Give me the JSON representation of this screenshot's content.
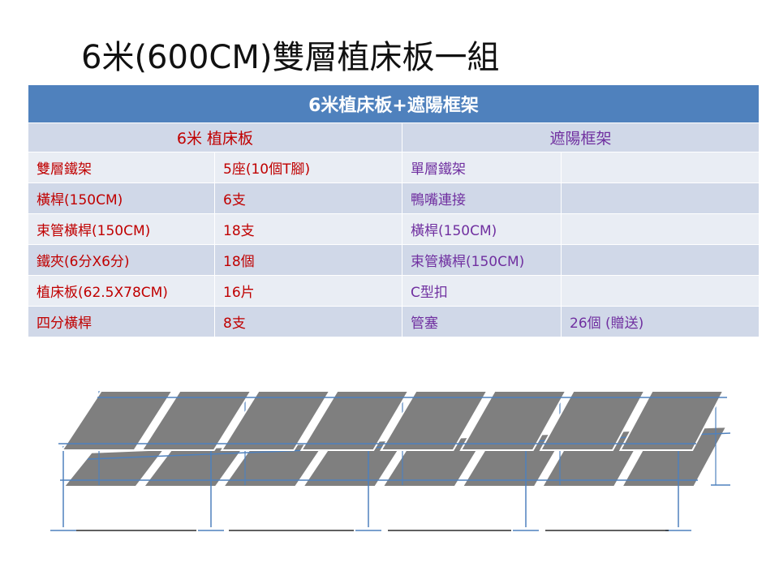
{
  "title": "6米(600CM)雙層植床板一組",
  "table": {
    "header": "6米植床板+遮陽框架",
    "left_heading": "6米 植床板",
    "right_heading": "遮陽框架",
    "rows": [
      {
        "l_name": "雙層鐵架",
        "l_qty": "5座(10個T腳)",
        "r_name": "單層鐵架",
        "r_qty": ""
      },
      {
        "l_name": "橫桿(150CM)",
        "l_qty": "6支",
        "r_name": "鴨嘴連接",
        "r_qty": ""
      },
      {
        "l_name": "束管橫桿(150CM)",
        "l_qty": "18支",
        "r_name": "橫桿(150CM)",
        "r_qty": ""
      },
      {
        "l_name": "鐵夾(6分X6分)",
        "l_qty": "18個",
        "r_name": "束管橫桿(150CM)",
        "r_qty": ""
      },
      {
        "l_name": "植床板(62.5X78CM)",
        "l_qty": "16片",
        "r_name": "C型扣",
        "r_qty": ""
      },
      {
        "l_name": "四分橫桿",
        "l_qty": "8支",
        "r_name": "管塞",
        "r_qty": "26個 (贈送)"
      }
    ]
  },
  "colors": {
    "header_bg": "#4f81bd",
    "left_text": "#c00000",
    "right_text": "#7030a0",
    "panel": "#7f7f7f",
    "frame": "#4f81bd"
  }
}
